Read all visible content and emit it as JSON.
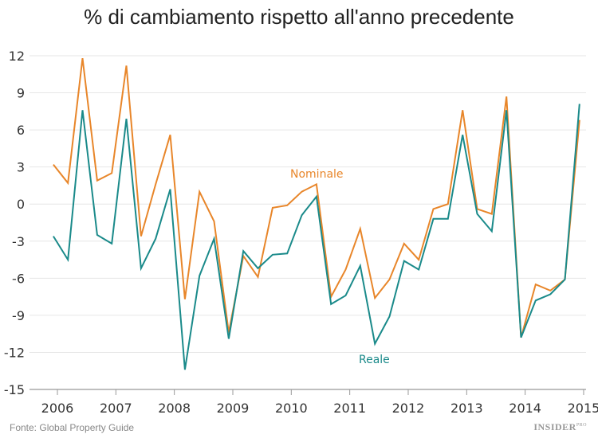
{
  "chart_data": {
    "type": "line",
    "title": "% di cambiamento rispetto all'anno precedente",
    "xlabel": "",
    "ylabel": "",
    "ylim": [
      -15,
      12
    ],
    "yticks": [
      "12",
      "9",
      "6",
      "3",
      "0",
      "-3",
      "-6",
      "-9",
      "-12",
      "-15"
    ],
    "xticks": [
      "2006",
      "2007",
      "2008",
      "2009",
      "2010",
      "2011",
      "2012",
      "2013",
      "2014",
      "2015"
    ],
    "grid": true,
    "x": [
      "2005 Q4",
      "2006 Q1",
      "2006 Q2",
      "2006 Q3",
      "2006 Q4",
      "2007 Q1",
      "2007 Q2",
      "2007 Q3",
      "2007 Q4",
      "2008 Q1",
      "2008 Q2",
      "2008 Q3",
      "2008 Q4",
      "2009 Q1",
      "2009 Q2",
      "2009 Q3",
      "2009 Q4",
      "2010 Q1",
      "2010 Q2",
      "2010 Q3",
      "2010 Q4",
      "2011 Q1",
      "2011 Q2",
      "2011 Q3",
      "2011 Q4",
      "2012 Q1",
      "2012 Q2",
      "2012 Q3",
      "2012 Q4",
      "2013 Q1",
      "2013 Q2",
      "2013 Q3",
      "2013 Q4",
      "2014 Q1",
      "2014 Q2",
      "2014 Q3",
      "2014 Q4"
    ],
    "series": [
      {
        "name": "Nominale",
        "color": "#e8862a",
        "values": [
          3.2,
          1.7,
          11.8,
          1.9,
          2.5,
          11.2,
          -2.6,
          1.6,
          5.6,
          -7.7,
          1.0,
          -1.4,
          -10.4,
          -4.2,
          -5.9,
          -0.3,
          -0.1,
          1.0,
          1.6,
          -7.5,
          -5.3,
          -2.0,
          -7.6,
          -6.1,
          -3.2,
          -4.5,
          -0.4,
          0.0,
          7.6,
          -0.4,
          -0.8,
          8.7,
          -10.8,
          -6.5,
          -7.0,
          -6.1,
          6.8
        ]
      },
      {
        "name": "Reale",
        "color": "#1a8a8a",
        "values": [
          -2.6,
          -4.5,
          7.6,
          -2.5,
          -3.2,
          6.9,
          -5.2,
          -2.8,
          1.2,
          -13.4,
          -5.8,
          -2.8,
          -10.9,
          -3.8,
          -5.2,
          -4.1,
          -4.0,
          -0.9,
          0.6,
          -8.1,
          -7.4,
          -5.0,
          -11.3,
          -9.1,
          -4.6,
          -5.3,
          -1.2,
          -1.2,
          5.6,
          -0.8,
          -2.2,
          7.6,
          -10.8,
          -7.8,
          -7.3,
          -6.1,
          8.1
        ]
      }
    ]
  },
  "footer": {
    "source": "Fonte: Global Property Guide",
    "logo": "INSIDER",
    "logo_sup": "PRO"
  }
}
